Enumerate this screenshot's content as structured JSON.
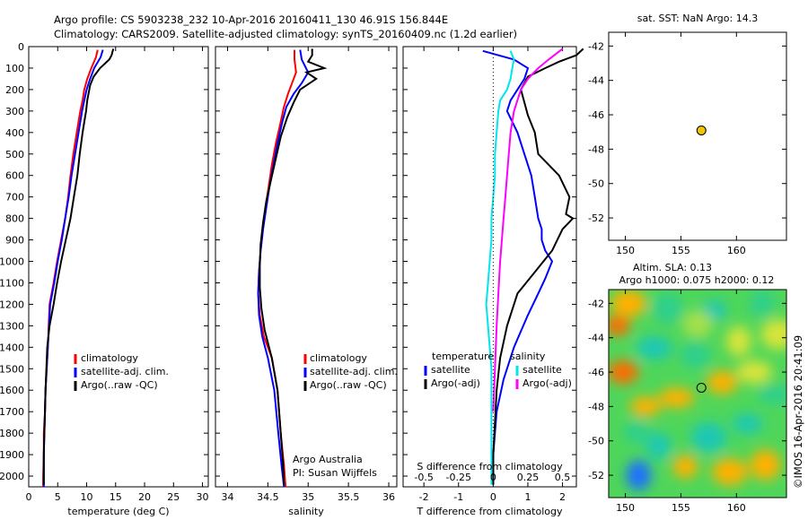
{
  "header": {
    "line1": "Argo profile: CS 5903238_232 10-Apr-2016 20160411_130 46.91S 156.844E",
    "line2": "Climatology: CARS2009. Satellite-adjusted climatology: synTS_20160409.nc (1.2d earlier)"
  },
  "side_label": "©IMOS 16-Apr-2016 20:41:09",
  "colors": {
    "climatology": "#ff0000",
    "satellite": "#0000ff",
    "argo": "#000000",
    "sat_salinity": "#00e5ee",
    "argo_salinity": "#ff00ff",
    "marker": "#f2c300"
  },
  "chart_data": [
    {
      "type": "line",
      "id": "temperature",
      "xlabel": "temperature (deg C)",
      "xlim": [
        0,
        31
      ],
      "xticks": [
        "0",
        "5",
        "10",
        "15",
        "20",
        "25",
        "30"
      ],
      "ylim": [
        0,
        2050
      ],
      "yticks": [
        "0",
        "100",
        "200",
        "300",
        "400",
        "500",
        "600",
        "700",
        "800",
        "900",
        "1000",
        "1100",
        "1200",
        "1300",
        "1400",
        "1500",
        "1600",
        "1700",
        "1800",
        "1900",
        "2000"
      ],
      "legend": [
        "climatology",
        "satellite-adj. clim.",
        "Argo(..raw -QC)"
      ],
      "series": [
        {
          "name": "climatology",
          "color": "#ff0000",
          "x": [
            11.9,
            11.6,
            10.8,
            10.1,
            9.6,
            9.3,
            8.9,
            8.3,
            7.7,
            7.2,
            6.8,
            6.3,
            5.6,
            4.9,
            4.3,
            3.6,
            3.3,
            2.9,
            2.8,
            2.6,
            2.6,
            2.5,
            2.5
          ],
          "y": [
            15,
            50,
            100,
            150,
            200,
            250,
            300,
            400,
            500,
            600,
            700,
            800,
            900,
            1000,
            1100,
            1200,
            1400,
            1600,
            1700,
            1800,
            1900,
            2000,
            2050
          ]
        },
        {
          "name": "satellite-adj. clim.",
          "color": "#0000ff",
          "x": [
            12.8,
            12.4,
            11.3,
            10.6,
            10.0,
            9.6,
            9.2,
            8.6,
            8.0,
            7.4,
            6.9,
            6.3,
            5.7,
            5.0,
            4.4,
            3.7,
            3.3,
            2.9,
            2.8,
            2.7,
            2.6,
            2.6,
            2.6
          ],
          "y": [
            15,
            50,
            100,
            150,
            200,
            250,
            300,
            400,
            500,
            600,
            700,
            800,
            900,
            1000,
            1100,
            1200,
            1400,
            1600,
            1700,
            1800,
            1900,
            2000,
            2050
          ]
        },
        {
          "name": "Argo(..raw -QC)",
          "color": "#000000",
          "x": [
            14.6,
            14.3,
            13.9,
            12.3,
            11.2,
            10.6,
            10.1,
            9.9,
            9.6,
            9.3,
            8.8,
            8.4,
            7.8,
            7.2,
            6.4,
            5.6,
            4.9,
            4.3,
            3.6,
            3.2,
            2.9,
            2.8,
            2.7,
            2.6,
            2.6
          ],
          "y": [
            10,
            40,
            60,
            100,
            140,
            180,
            250,
            300,
            350,
            400,
            500,
            600,
            700,
            800,
            900,
            1000,
            1100,
            1200,
            1300,
            1400,
            1600,
            1700,
            1800,
            1900,
            2040
          ]
        }
      ]
    },
    {
      "type": "line",
      "id": "salinity",
      "xlabel": "salinity",
      "xlim": [
        33.85,
        36.1
      ],
      "xticks": [
        "34",
        "34.5",
        "35",
        "35.5",
        "36"
      ],
      "ylim": [
        0,
        2050
      ],
      "legend": [
        "climatology",
        "satellite-adj. clim.",
        "Argo(..raw -QC)"
      ],
      "annotation": [
        "Argo Australia",
        "PI: Susan Wijffels"
      ],
      "series": [
        {
          "name": "climatology",
          "color": "#ff0000",
          "x": [
            34.83,
            34.83,
            34.85,
            34.8,
            34.75,
            34.7,
            34.66,
            34.6,
            34.55,
            34.51,
            34.47,
            34.44,
            34.41,
            34.39,
            34.38,
            34.4,
            34.45,
            34.55,
            34.62,
            34.66,
            34.7,
            34.72
          ],
          "y": [
            15,
            60,
            120,
            170,
            220,
            280,
            350,
            450,
            550,
            650,
            750,
            850,
            950,
            1050,
            1150,
            1250,
            1350,
            1450,
            1600,
            1800,
            1950,
            2050
          ]
        },
        {
          "name": "satellite-adj. clim.",
          "color": "#0000ff",
          "x": [
            34.9,
            34.92,
            35.0,
            34.92,
            34.82,
            34.73,
            34.68,
            34.62,
            34.57,
            34.52,
            34.48,
            34.44,
            34.41,
            34.39,
            34.38,
            34.39,
            34.43,
            34.5,
            34.58,
            34.63,
            34.67,
            34.7
          ],
          "y": [
            15,
            60,
            120,
            170,
            220,
            280,
            350,
            450,
            550,
            650,
            750,
            850,
            950,
            1050,
            1150,
            1250,
            1350,
            1450,
            1600,
            1800,
            1950,
            2050
          ]
        },
        {
          "name": "Argo(..raw -QC)",
          "color": "#000000",
          "x": [
            35.05,
            35.05,
            35.0,
            35.2,
            34.98,
            35.1,
            34.9,
            34.82,
            34.74,
            34.66,
            34.6,
            34.54,
            34.48,
            34.44,
            34.41,
            34.4,
            34.4,
            34.42,
            34.46,
            34.55,
            34.62,
            34.66,
            34.69,
            34.7
          ],
          "y": [
            10,
            40,
            70,
            100,
            120,
            150,
            200,
            260,
            330,
            420,
            520,
            620,
            720,
            820,
            920,
            1020,
            1120,
            1220,
            1320,
            1450,
            1600,
            1800,
            1950,
            2040
          ]
        }
      ]
    },
    {
      "type": "line",
      "id": "differences",
      "xlabel": "T difference from climatology",
      "xlabel_top": "S difference from climatology",
      "xlim": [
        -2.6,
        2.4
      ],
      "xticks": [
        "-2",
        "-1",
        "0",
        "1",
        "2"
      ],
      "sticks": [
        "-0.5",
        "-0.25",
        "0",
        "0.25",
        "0.5"
      ],
      "ylim": [
        0,
        2050
      ],
      "legend_left_title": "temperature",
      "legend_left": [
        "satellite",
        "Argo(-adj)"
      ],
      "legend_right_title": "salinity",
      "legend_right": [
        "satellite",
        "Argo(-adj)"
      ],
      "series": [
        {
          "name": "satellite",
          "color": "#0000ff",
          "x": [
            -0.3,
            0.6,
            1.0,
            0.9,
            0.7,
            0.5,
            0.4,
            0.7,
            0.9,
            1.1,
            1.2,
            1.3,
            1.4,
            1.4,
            1.5,
            1.7,
            1.5,
            1.3,
            1.0,
            0.6,
            0.3,
            0.1,
            0.05,
            0.0,
            0.0
          ],
          "y": [
            20,
            60,
            100,
            150,
            200,
            250,
            300,
            400,
            500,
            600,
            700,
            800,
            850,
            900,
            950,
            1000,
            1080,
            1150,
            1250,
            1400,
            1550,
            1700,
            1800,
            1900,
            2040
          ]
        },
        {
          "name": "Argo(-adj)",
          "color": "#000000",
          "x": [
            2.6,
            2.4,
            1.9,
            1.5,
            1.0,
            0.8,
            0.9,
            1.0,
            1.2,
            1.3,
            1.9,
            2.2,
            2.1,
            2.3,
            2.0,
            1.7,
            1.2,
            0.7,
            0.4,
            0.2,
            0.1,
            0.05,
            0.0,
            0.0
          ],
          "y": [
            10,
            40,
            70,
            100,
            140,
            200,
            260,
            320,
            400,
            500,
            600,
            700,
            780,
            800,
            850,
            950,
            1050,
            1150,
            1300,
            1450,
            1600,
            1750,
            1900,
            2040
          ]
        },
        {
          "name": "satellite",
          "color": "#00e5ee",
          "x": [
            0.5,
            0.6,
            0.55,
            0.5,
            0.4,
            0.2,
            0.15,
            0.1,
            0.05,
            0.05,
            0.0,
            -0.05,
            -0.05,
            -0.1,
            -0.15,
            -0.2,
            -0.15,
            -0.1,
            -0.05,
            -0.05,
            -0.05,
            -0.05
          ],
          "y": [
            20,
            60,
            100,
            150,
            200,
            250,
            300,
            400,
            500,
            600,
            700,
            800,
            900,
            1000,
            1100,
            1200,
            1300,
            1400,
            1500,
            1700,
            1900,
            2040
          ]
        },
        {
          "name": "Argo(-adj)",
          "color": "#ff00ff",
          "x": [
            2.0,
            1.6,
            1.3,
            1.0,
            0.8,
            0.6,
            0.5,
            0.45,
            0.4,
            0.35,
            0.3,
            0.25,
            0.2,
            0.15,
            0.1,
            0.05,
            0.0
          ],
          "y": [
            10,
            60,
            100,
            150,
            200,
            300,
            400,
            500,
            600,
            700,
            800,
            900,
            1000,
            1150,
            1300,
            1500,
            1700
          ]
        }
      ]
    },
    {
      "type": "scatter",
      "id": "position",
      "title": "sat. SST: NaN Argo: 14.3",
      "xlim": [
        148.5,
        164.5
      ],
      "ylim": [
        -53.3,
        -41.2
      ],
      "xticks": [
        "150",
        "155",
        "160"
      ],
      "yticks": [
        "-42",
        "-44",
        "-46",
        "-48",
        "-50",
        "-52"
      ],
      "points": [
        {
          "x": 156.844,
          "y": -46.91
        }
      ]
    },
    {
      "type": "heatmap",
      "id": "altimetry",
      "title": "Altim. SLA: 0.13",
      "subtitle": "Argo h1000: 0.075 h2000: 0.12",
      "xlim": [
        148.5,
        164.5
      ],
      "ylim": [
        -53.3,
        -41.2
      ],
      "xticks": [
        "150",
        "155",
        "160"
      ],
      "yticks": [
        "-42",
        "-44",
        "-46",
        "-48",
        "-50",
        "-52"
      ],
      "points": [
        {
          "x": 156.844,
          "y": -46.91
        }
      ],
      "blobs": [
        {
          "x": 149.3,
          "y": -43.3,
          "v": 0.9
        },
        {
          "x": 149.8,
          "y": -46.0,
          "v": 0.85
        },
        {
          "x": 150.3,
          "y": -42.0,
          "v": 0.6
        },
        {
          "x": 151.2,
          "y": -52.0,
          "v": -1.0
        },
        {
          "x": 151.8,
          "y": -48.0,
          "v": 0.55
        },
        {
          "x": 152.6,
          "y": -44.6,
          "v": -0.6
        },
        {
          "x": 153.0,
          "y": -50.3,
          "v": -0.55
        },
        {
          "x": 153.8,
          "y": -42.3,
          "v": -0.35
        },
        {
          "x": 154.6,
          "y": -47.5,
          "v": 0.5
        },
        {
          "x": 155.4,
          "y": -51.5,
          "v": 0.6
        },
        {
          "x": 156.3,
          "y": -45.0,
          "v": -0.4
        },
        {
          "x": 157.5,
          "y": -49.8,
          "v": -0.5
        },
        {
          "x": 158.0,
          "y": -42.4,
          "v": -0.55
        },
        {
          "x": 158.7,
          "y": -46.6,
          "v": 0.5
        },
        {
          "x": 159.4,
          "y": -51.8,
          "v": 0.7
        },
        {
          "x": 160.2,
          "y": -44.2,
          "v": 0.45
        },
        {
          "x": 161.0,
          "y": -49.0,
          "v": -0.5
        },
        {
          "x": 161.6,
          "y": -46.0,
          "v": 0.35
        },
        {
          "x": 162.3,
          "y": -42.0,
          "v": -0.4
        },
        {
          "x": 162.6,
          "y": -51.4,
          "v": 0.6
        },
        {
          "x": 163.5,
          "y": -47.3,
          "v": -0.3
        },
        {
          "x": 151.0,
          "y": -49.5,
          "v": -0.4
        },
        {
          "x": 156.5,
          "y": -43.2,
          "v": 0.2
        },
        {
          "x": 163.8,
          "y": -43.8,
          "v": 0.3
        }
      ]
    }
  ]
}
